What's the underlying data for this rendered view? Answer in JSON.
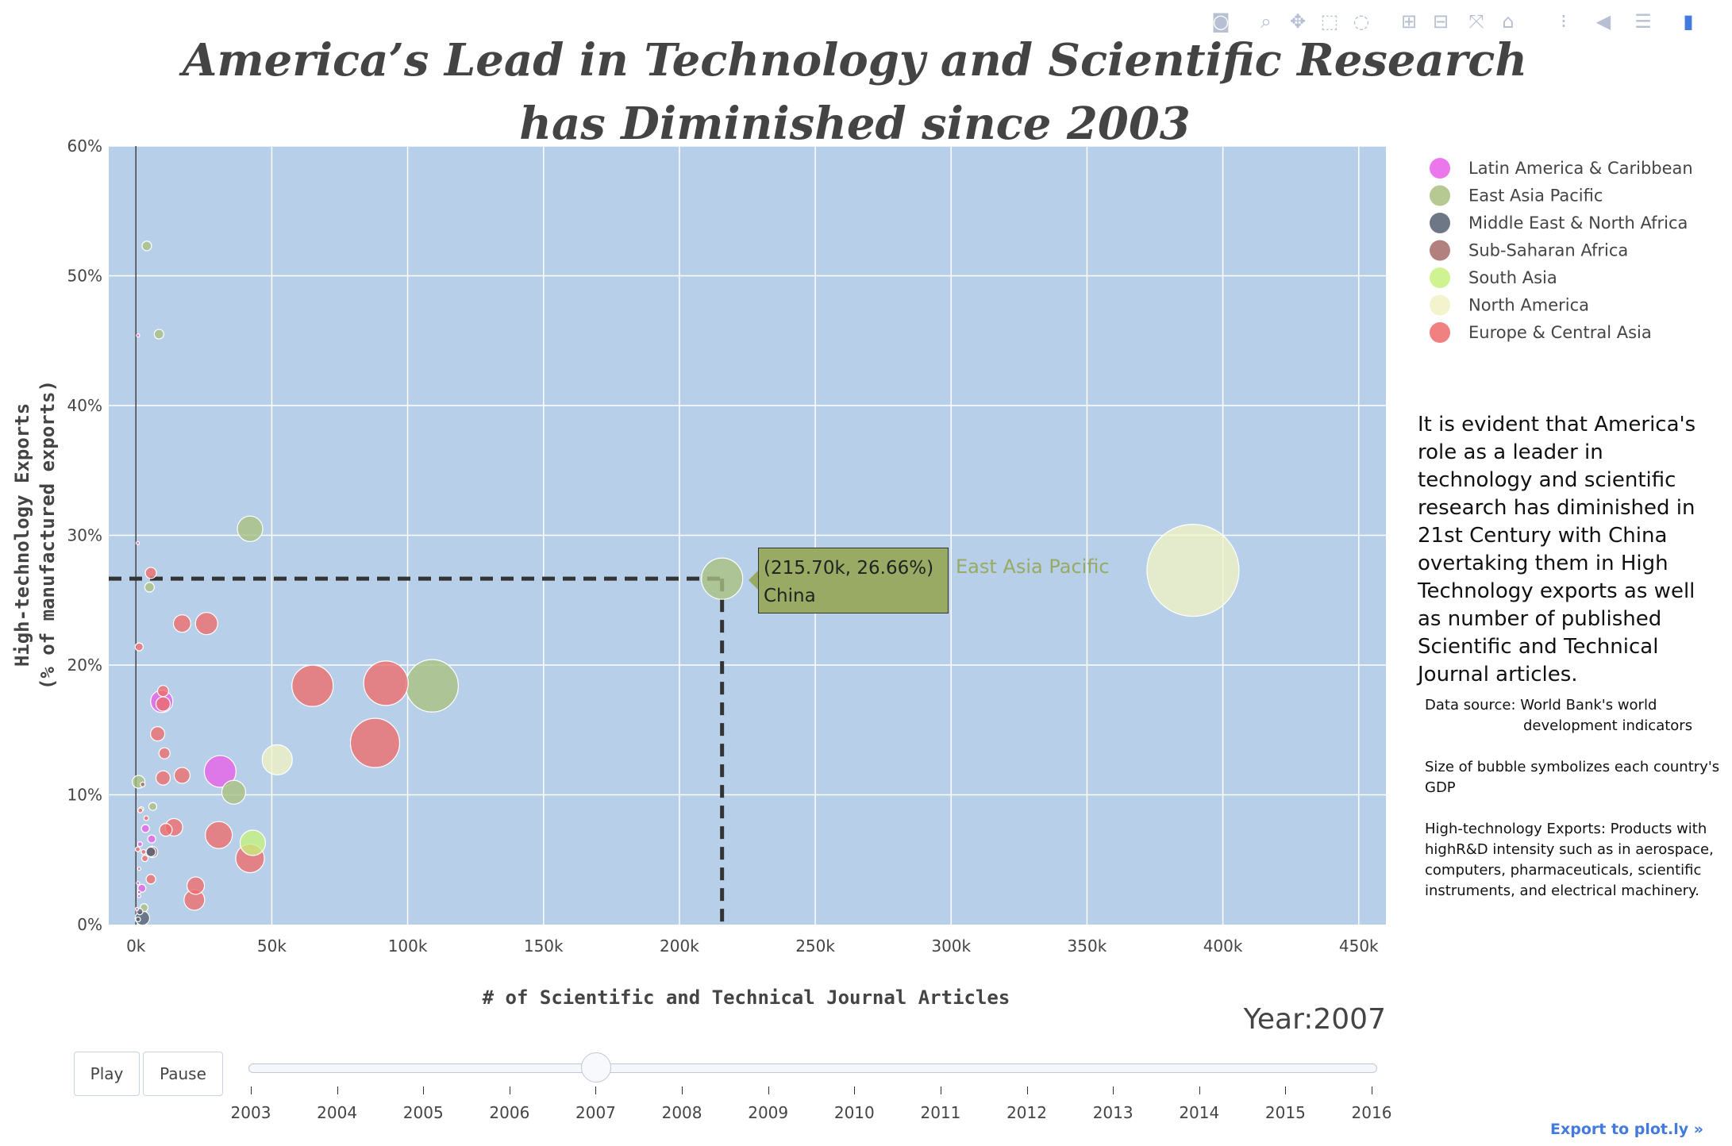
{
  "toolbar": {
    "icons": [
      "camera-icon",
      "zoom-icon",
      "pan-icon",
      "box-select-icon",
      "lasso-icon",
      "zoom-in-icon",
      "zoom-out-icon",
      "autoscale-icon",
      "reset-axes-icon",
      "spike-lines-icon",
      "hover-closest-icon",
      "hover-compare-icon",
      "plotly-logo-icon"
    ],
    "color": "#b6c0d2"
  },
  "chart_data": {
    "type": "scatter",
    "title_line1": "America’s Lead in Technology and Scientific Research",
    "title_line2": "has Diminished since 2003",
    "xlabel": "# of Scientific and Technical Journal Articles",
    "ylabel_line1": "High-technology Exports",
    "ylabel_line2": "(% of manufactured exports)",
    "xlim": [
      -10000,
      460000
    ],
    "ylim": [
      0,
      60
    ],
    "x_ticks": [
      0,
      50000,
      100000,
      150000,
      200000,
      250000,
      300000,
      350000,
      400000,
      450000
    ],
    "x_tick_labels": [
      "0k",
      "50k",
      "100k",
      "150k",
      "200k",
      "250k",
      "300k",
      "350k",
      "400k",
      "450k"
    ],
    "y_ticks": [
      0,
      10,
      20,
      30,
      40,
      50,
      60
    ],
    "y_tick_labels": [
      "0%",
      "10%",
      "20%",
      "30%",
      "40%",
      "50%",
      "60%"
    ],
    "grid": true,
    "plot_bgcolor": "#b7cfe8",
    "legend_position": "right",
    "series": [
      {
        "name": "Latin America & Caribbean",
        "color": "#e95fe9",
        "points": [
          [
            9500,
            17.2,
            14
          ],
          [
            31000,
            11.8,
            20
          ],
          [
            800,
            45.4,
            2
          ],
          [
            700,
            29.4,
            2
          ],
          [
            3500,
            7.4,
            5
          ],
          [
            5800,
            6.6,
            5
          ],
          [
            2200,
            2.8,
            5
          ],
          [
            1500,
            6.2,
            3
          ],
          [
            800,
            3.2,
            2
          ],
          [
            1200,
            2.2,
            2
          ],
          [
            400,
            1.2,
            2
          ]
        ]
      },
      {
        "name": "East Asia Pacific",
        "color": "#a9c07f",
        "points": [
          [
            215700,
            26.66,
            26
          ],
          [
            109000,
            18.4,
            33
          ],
          [
            42000,
            30.5,
            16
          ],
          [
            36000,
            10.2,
            15
          ],
          [
            8500,
            45.5,
            6
          ],
          [
            4000,
            52.3,
            6
          ],
          [
            5000,
            26.0,
            6
          ],
          [
            1000,
            11.0,
            8
          ],
          [
            6200,
            9.1,
            5
          ],
          [
            3000,
            1.3,
            5
          ],
          [
            2000,
            8.9,
            3
          ]
        ]
      },
      {
        "name": "Middle East & North Africa",
        "color": "#555f70",
        "points": [
          [
            2400,
            0.5,
            9
          ],
          [
            5500,
            5.6,
            6
          ],
          [
            1400,
            1.0,
            4
          ],
          [
            800,
            0.4,
            3
          ]
        ]
      },
      {
        "name": "Sub-Saharan Africa",
        "color": "#a66a6a",
        "points": [
          [
            6000,
            5.6,
            7
          ],
          [
            2500,
            10.8,
            3
          ],
          [
            1200,
            2.5,
            2
          ]
        ]
      },
      {
        "name": "South Asia",
        "color": "#c7f17c",
        "points": [
          [
            43000,
            6.3,
            16
          ]
        ]
      },
      {
        "name": "North America",
        "color": "#f1f2c4",
        "points": [
          [
            389000,
            27.3,
            58
          ],
          [
            52000,
            12.7,
            19
          ]
        ]
      },
      {
        "name": "Europe & Central Asia",
        "color": "#ee6b6b",
        "points": [
          [
            92000,
            18.6,
            28
          ],
          [
            88000,
            14.0,
            31
          ],
          [
            65000,
            18.4,
            26
          ],
          [
            42000,
            5.1,
            18
          ],
          [
            30500,
            6.9,
            17
          ],
          [
            26000,
            23.2,
            14
          ],
          [
            17000,
            23.2,
            11
          ],
          [
            17000,
            11.5,
            10
          ],
          [
            10000,
            17.0,
            9
          ],
          [
            10000,
            18.0,
            7
          ],
          [
            8000,
            14.7,
            9
          ],
          [
            10000,
            11.3,
            9
          ],
          [
            14000,
            7.5,
            11
          ],
          [
            11000,
            7.3,
            8
          ],
          [
            10500,
            13.2,
            7
          ],
          [
            22000,
            3.0,
            11
          ],
          [
            21500,
            1.9,
            13
          ],
          [
            5500,
            27.1,
            7
          ],
          [
            5500,
            3.5,
            6
          ],
          [
            3300,
            5.1,
            4
          ],
          [
            2800,
            5.6,
            3
          ],
          [
            1200,
            21.4,
            5
          ],
          [
            700,
            5.8,
            3
          ],
          [
            1600,
            8.8,
            3
          ],
          [
            3800,
            8.2,
            3
          ],
          [
            1200,
            4.3,
            2
          ]
        ]
      }
    ],
    "hover": {
      "x": 215700,
      "y": 26.66,
      "label_value": "(215.70k, 26.66%)",
      "country": "China",
      "region": "East Asia Pacific"
    },
    "annotations": {
      "main": "It is evident that America's role as a leader in technology and scientific research has diminished in 21st Century with China overtaking them in High Technology exports as well as number of published Scientific and Technical Journal articles.",
      "source_label": "Data source: World Bank's world",
      "source_cont": "development indicators",
      "size": "Size of bubble symbolizes each country's GDP",
      "definition": "High-technology Exports: Products with highR&D intensity such as in aerospace, computers, pharmaceuticals, scientific instruments, and electrical machinery."
    }
  },
  "controls": {
    "current_year_label": "Year:2007",
    "play_label": "Play",
    "pause_label": "Pause",
    "years": [
      "2003",
      "2004",
      "2005",
      "2006",
      "2007",
      "2008",
      "2009",
      "2010",
      "2011",
      "2012",
      "2013",
      "2014",
      "2015",
      "2016"
    ],
    "current_year": "2007"
  },
  "footer": {
    "export_label": "Export to plot.ly »"
  }
}
